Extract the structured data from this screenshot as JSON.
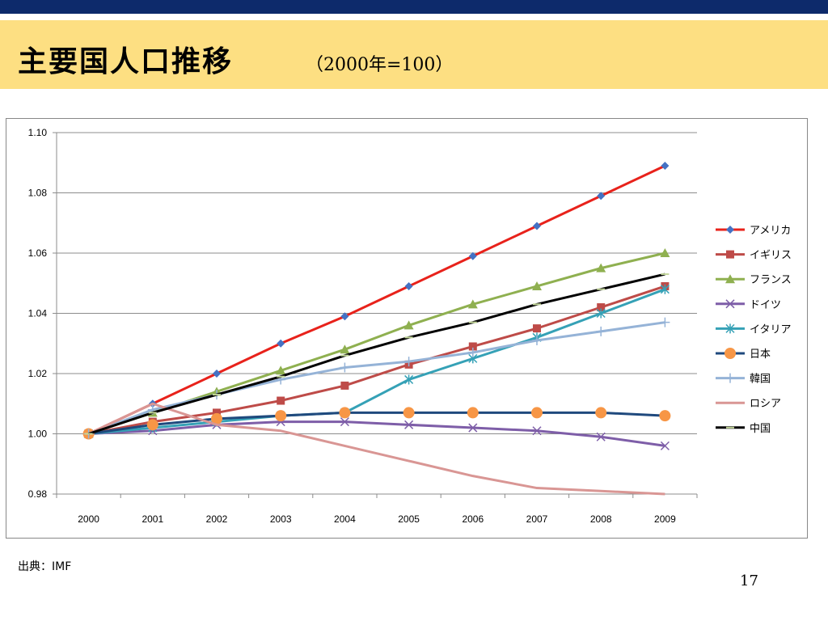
{
  "slide": {
    "title": "主要国人口推移",
    "subtitle": "（2000年=100）",
    "source": "出典：IMF",
    "page_number": "17"
  },
  "chart_data": {
    "type": "line",
    "x": [
      "2000",
      "2001",
      "2002",
      "2003",
      "2004",
      "2005",
      "2006",
      "2007",
      "2008",
      "2009"
    ],
    "ylim": [
      0.98,
      1.1
    ],
    "yticks": [
      "0.98",
      "1.00",
      "1.02",
      "1.04",
      "1.06",
      "1.08",
      "1.10"
    ],
    "grid": true,
    "legend_position": "right",
    "series": [
      {
        "name": "アメリカ",
        "color": "#e8221b",
        "marker": "diamond",
        "marker_color": "#4472c4",
        "values": [
          1.0,
          1.01,
          1.02,
          1.03,
          1.039,
          1.049,
          1.059,
          1.069,
          1.079,
          1.089
        ]
      },
      {
        "name": "イギリス",
        "color": "#be4b48",
        "marker": "square",
        "marker_color": "#be4b48",
        "values": [
          1.0,
          1.004,
          1.007,
          1.011,
          1.016,
          1.023,
          1.029,
          1.035,
          1.042,
          1.049
        ]
      },
      {
        "name": "フランス",
        "color": "#8fb050",
        "marker": "triangle",
        "marker_color": "#8fb050",
        "values": [
          1.0,
          1.007,
          1.014,
          1.021,
          1.028,
          1.036,
          1.043,
          1.049,
          1.055,
          1.06
        ]
      },
      {
        "name": "ドイツ",
        "color": "#7e5ea8",
        "marker": "x",
        "marker_color": "#7e5ea8",
        "values": [
          1.0,
          1.001,
          1.003,
          1.004,
          1.004,
          1.003,
          1.002,
          1.001,
          0.999,
          0.996
        ]
      },
      {
        "name": "イタリア",
        "color": "#35a1b6",
        "marker": "star",
        "marker_color": "#35a1b6",
        "values": [
          1.0,
          1.002,
          1.004,
          1.006,
          1.007,
          1.018,
          1.025,
          1.032,
          1.04,
          1.048
        ]
      },
      {
        "name": "日本",
        "color": "#1f497d",
        "marker": "circle",
        "marker_color": "#f79646",
        "values": [
          1.0,
          1.003,
          1.005,
          1.006,
          1.007,
          1.007,
          1.007,
          1.007,
          1.007,
          1.006
        ]
      },
      {
        "name": "韓国",
        "color": "#95b3d7",
        "marker": "plus",
        "marker_color": "#95b3d7",
        "values": [
          1.0,
          1.008,
          1.013,
          1.018,
          1.022,
          1.024,
          1.027,
          1.031,
          1.034,
          1.037
        ]
      },
      {
        "name": "ロシア",
        "color": "#d99694",
        "marker": "none",
        "marker_color": "#d99694",
        "values": [
          1.0,
          1.01,
          1.003,
          1.001,
          0.996,
          0.991,
          0.986,
          0.982,
          0.981,
          0.98
        ]
      },
      {
        "name": "中国",
        "color": "#000000",
        "marker": "dash",
        "marker_color": "#c3d69b",
        "values": [
          1.0,
          1.007,
          1.013,
          1.019,
          1.026,
          1.032,
          1.037,
          1.043,
          1.048,
          1.053
        ]
      }
    ]
  }
}
